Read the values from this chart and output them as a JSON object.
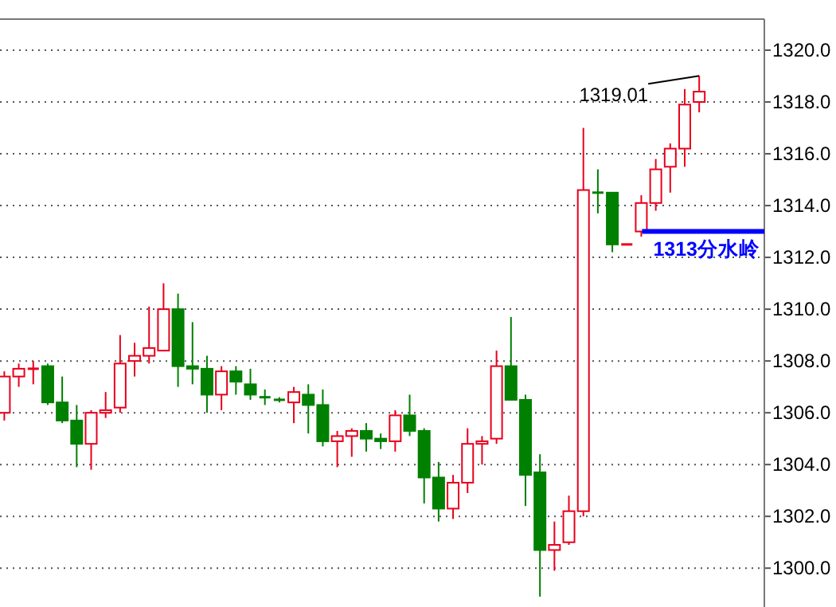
{
  "chart_data": {
    "type": "candlestick",
    "categories": [
      null,
      null,
      null,
      null,
      null,
      null,
      null,
      null,
      null,
      null,
      null,
      null,
      null,
      null,
      null,
      null,
      null,
      null,
      null,
      null,
      null,
      null,
      null,
      null,
      null,
      null,
      null,
      null,
      null,
      null,
      null,
      null,
      null,
      null,
      null,
      null,
      null,
      null,
      null,
      null,
      null,
      null,
      null,
      null,
      null,
      null,
      null,
      null,
      null
    ],
    "ohlc": [
      [
        1306.0,
        1307.6,
        1305.7,
        1307.4
      ],
      [
        1307.4,
        1307.9,
        1307.0,
        1307.7
      ],
      [
        1307.7,
        1308.0,
        1307.1,
        1307.7
      ],
      [
        1307.8,
        1307.9,
        1306.3,
        1306.4
      ],
      [
        1306.4,
        1307.4,
        1305.6,
        1305.7
      ],
      [
        1305.7,
        1306.3,
        1303.9,
        1304.8
      ],
      [
        1304.8,
        1306.1,
        1303.8,
        1306.0
      ],
      [
        1306.0,
        1306.8,
        1305.8,
        1306.1
      ],
      [
        1306.2,
        1309.0,
        1306.0,
        1307.9
      ],
      [
        1308.0,
        1308.7,
        1307.4,
        1308.2
      ],
      [
        1308.2,
        1310.1,
        1307.9,
        1308.5
      ],
      [
        1308.4,
        1311.0,
        1308.4,
        1310.0
      ],
      [
        1310.0,
        1310.6,
        1307.0,
        1307.8
      ],
      [
        1307.8,
        1309.5,
        1307.1,
        1307.7
      ],
      [
        1307.7,
        1308.2,
        1306.0,
        1306.7
      ],
      [
        1306.7,
        1307.8,
        1306.1,
        1307.6
      ],
      [
        1307.6,
        1307.8,
        1306.7,
        1307.2
      ],
      [
        1307.1,
        1307.7,
        1306.5,
        1306.7
      ],
      [
        1306.6,
        1306.9,
        1306.3,
        1306.6
      ],
      [
        1306.5,
        1306.6,
        1306.4,
        1306.5
      ],
      [
        1306.4,
        1307.0,
        1305.6,
        1306.8
      ],
      [
        1306.7,
        1307.1,
        1305.2,
        1306.3
      ],
      [
        1306.3,
        1306.9,
        1304.7,
        1304.9
      ],
      [
        1304.9,
        1305.3,
        1303.9,
        1305.1
      ],
      [
        1305.1,
        1305.4,
        1304.3,
        1305.3
      ],
      [
        1305.3,
        1305.6,
        1304.5,
        1305.0
      ],
      [
        1305.0,
        1305.2,
        1304.6,
        1304.9
      ],
      [
        1304.9,
        1306.1,
        1304.5,
        1305.9
      ],
      [
        1305.9,
        1306.7,
        1305.1,
        1305.3
      ],
      [
        1305.3,
        1305.4,
        1302.5,
        1303.5
      ],
      [
        1303.5,
        1304.1,
        1301.8,
        1302.3
      ],
      [
        1302.3,
        1303.6,
        1301.9,
        1303.3
      ],
      [
        1303.3,
        1305.4,
        1302.9,
        1304.8
      ],
      [
        1304.8,
        1305.1,
        1304.0,
        1304.9
      ],
      [
        1305.0,
        1308.4,
        1304.8,
        1307.8
      ],
      [
        1307.8,
        1309.7,
        1306.5,
        1306.5
      ],
      [
        1306.5,
        1306.7,
        1302.4,
        1303.6
      ],
      [
        1303.7,
        1304.4,
        1298.9,
        1300.7
      ],
      [
        1300.7,
        1301.8,
        1299.9,
        1300.9
      ],
      [
        1301.0,
        1302.8,
        1300.9,
        1302.2
      ],
      [
        1302.2,
        1317.0,
        1302.0,
        1314.6
      ],
      [
        1314.5,
        1315.4,
        1313.7,
        1314.5
      ],
      [
        1314.5,
        1314.5,
        1312.2,
        1312.5
      ],
      [
        1312.5,
        1312.5,
        1312.5,
        1312.5
      ],
      [
        1313.0,
        1314.4,
        1312.8,
        1314.1
      ],
      [
        1314.1,
        1315.8,
        1313.8,
        1315.4
      ],
      [
        1315.5,
        1316.4,
        1314.5,
        1316.2
      ],
      [
        1316.2,
        1318.5,
        1315.5,
        1317.9
      ],
      [
        1318.0,
        1319.01,
        1317.6,
        1318.4
      ]
    ],
    "ylim": [
      1298.5,
      1321.2
    ],
    "yticks": [
      {
        "value": 1300,
        "label": "1300.0"
      },
      {
        "value": 1302,
        "label": "1302.0"
      },
      {
        "value": 1304,
        "label": "1304.0"
      },
      {
        "value": 1306,
        "label": "1306.0"
      },
      {
        "value": 1308,
        "label": "1308.0"
      },
      {
        "value": 1310,
        "label": "1310.0"
      },
      {
        "value": 1312,
        "label": "1312.0"
      },
      {
        "value": 1314,
        "label": "1314.0"
      },
      {
        "value": 1316,
        "label": "1316.0"
      },
      {
        "value": 1318,
        "label": "1318.0"
      },
      {
        "value": 1320,
        "label": "1320.0"
      }
    ],
    "grid": "y",
    "ref_lines": [
      {
        "axis": "y",
        "value": 1313,
        "label": "1313分水岭",
        "color": "#0000ff"
      }
    ],
    "annotations": [
      "1319.01"
    ]
  }
}
